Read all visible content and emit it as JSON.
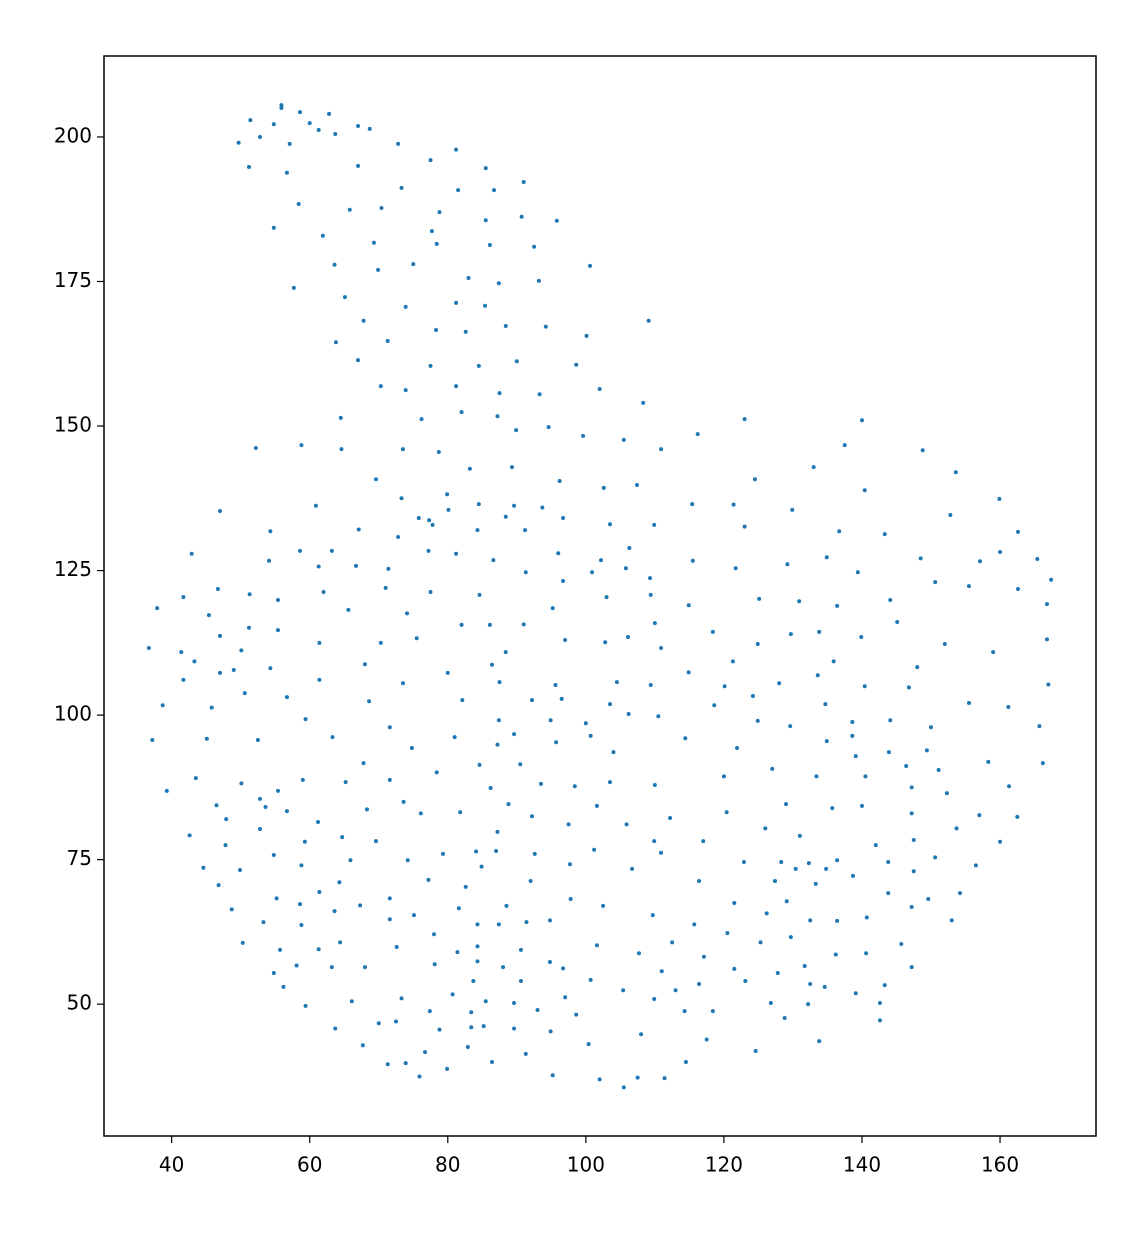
{
  "chart_data": {
    "type": "scatter",
    "color": "#1f77b4",
    "xlim": [
      30.2,
      173.9
    ],
    "ylim": [
      27.2,
      214.0
    ],
    "xticks": [
      40,
      60,
      80,
      100,
      120,
      140,
      160
    ],
    "yticks": [
      50,
      75,
      100,
      125,
      150,
      175,
      200
    ],
    "x": [
      55.9,
      55.9,
      58.6,
      62.8,
      51.4,
      60.0,
      54.8,
      67.0,
      68.7,
      61.3,
      63.7,
      52.8,
      49.7,
      57.1,
      72.8,
      81.2,
      77.5,
      51.2,
      67.0,
      85.5,
      56.7,
      91.0,
      73.3,
      81.5,
      86.7,
      58.4,
      70.4,
      65.8,
      78.8,
      90.7,
      95.8,
      85.5,
      54.8,
      77.7,
      61.9,
      69.3,
      78.4,
      86.1,
      92.5,
      75.0,
      63.6,
      100.6,
      69.9,
      83.0,
      87.4,
      93.2,
      57.7,
      65.1,
      81.2,
      85.4,
      73.9,
      67.8,
      109.1,
      78.3,
      82.6,
      88.4,
      94.2,
      100.1,
      71.3,
      63.8,
      67.0,
      90.0,
      84.5,
      77.5,
      98.6,
      81.2,
      70.3,
      73.9,
      102.0,
      87.5,
      93.3,
      108.3,
      82.0,
      64.5,
      76.2,
      87.2,
      123.0,
      140.0,
      94.6,
      89.9,
      116.2,
      99.6,
      105.5,
      58.8,
      52.2,
      64.6,
      73.5,
      110.9,
      137.5,
      78.7,
      148.8,
      89.3,
      83.2,
      133.0,
      153.6,
      69.6,
      96.2,
      124.5,
      107.4,
      102.6,
      140.4,
      79.9,
      73.3,
      159.9,
      115.4,
      121.4,
      89.6,
      84.5,
      60.9,
      93.7,
      80.1,
      129.9,
      47.0,
      152.8,
      96.7,
      75.8,
      77.3,
      88.4,
      77.8,
      109.9,
      103.5,
      123.0,
      91.2,
      54.3,
      84.3,
      136.7,
      67.1,
      143.3,
      162.6,
      72.8,
      106.3,
      77.2,
      58.6,
      63.2,
      81.2,
      42.9,
      96.0,
      148.5,
      160.0,
      86.6,
      134.9,
      165.4,
      54.1,
      115.5,
      102.2,
      157.1,
      129.2,
      61.3,
      66.7,
      121.7,
      100.9,
      139.4,
      105.8,
      71.4,
      91.3,
      109.3,
      167.4,
      96.7,
      150.6,
      71.0,
      155.5,
      46.7,
      62.0,
      77.5,
      162.6,
      84.6,
      109.4,
      41.7,
      51.3,
      103.0,
      125.1,
      130.9,
      144.1,
      55.4,
      114.9,
      136.4,
      166.8,
      37.9,
      65.6,
      95.2,
      74.1,
      45.4,
      145.1,
      110.0,
      82.0,
      86.1,
      91.0,
      51.2,
      118.4,
      55.4,
      129.7,
      133.8,
      106.1,
      47.0,
      166.8,
      75.5,
      97.0,
      139.9,
      102.8,
      70.3,
      61.4,
      152.0,
      110.9,
      50.1,
      36.7,
      124.9,
      88.4,
      41.4,
      159.0,
      43.3,
      135.9,
      121.3,
      68.0,
      54.3,
      86.4,
      148.0,
      49.0,
      47.0,
      80.0,
      114.9,
      133.6,
      41.7,
      61.4,
      87.5,
      104.5,
      73.5,
      109.4,
      128.0,
      140.4,
      167.0,
      146.8,
      95.6,
      120.1,
      50.6,
      56.7,
      124.2,
      82.1,
      92.2,
      96.5,
      68.6,
      103.5,
      118.6,
      134.7,
      38.7,
      155.5,
      161.2,
      45.8,
      106.2,
      110.5,
      94.9,
      59.4,
      87.4,
      144.1,
      124.9,
      138.6,
      100.0,
      71.6,
      129.6,
      150.0,
      165.7,
      89.6,
      114.4,
      100.7,
      63.3,
      81.0,
      45.1,
      37.2,
      52.5,
      134.9,
      95.7,
      138.6,
      87.2,
      74.8,
      121.9,
      104.0,
      143.9,
      149.4,
      139.1,
      166.2,
      67.8,
      84.6,
      90.5,
      158.3,
      146.4,
      127.0,
      78.4,
      151.1,
      140.5,
      120.0,
      133.4,
      43.5,
      59.0,
      71.6,
      65.2,
      103.5,
      50.1,
      93.5,
      110.0,
      98.4,
      86.2,
      147.2,
      161.3,
      39.3,
      55.4,
      152.3,
      52.8,
      73.6,
      88.8,
      129.0,
      101.6,
      140.0,
      53.6,
      46.5,
      135.7,
      68.3,
      56.7,
      81.8,
      120.4,
      147.2,
      76.1,
      157.0,
      162.5,
      92.2,
      112.2,
      47.9,
      61.2,
      105.9,
      97.5,
      153.7,
      126.0,
      52.8,
      42.6,
      87.2,
      131.0,
      64.7,
      147.5,
      69.6,
      109.9,
      117.0,
      59.3,
      160.0,
      47.8,
      142.0,
      101.2,
      84.1,
      87.0,
      110.9,
      92.6,
      79.3,
      54.8,
      150.6,
      74.2,
      65.9,
      136.4,
      122.9,
      128.3,
      132.3,
      143.8,
      97.7,
      156.5,
      84.9,
      58.8,
      44.6,
      106.7,
      49.9,
      130.4,
      134.8,
      147.5,
      138.7,
      64.3,
      92.0,
      116.4,
      77.2,
      127.4,
      46.8,
      133.3,
      82.6,
      61.4,
      143.8,
      154.2,
      97.8,
      55.2,
      71.6,
      149.6,
      129.1,
      102.5,
      88.5,
      121.5,
      58.6,
      67.3,
      147.2,
      81.6,
      48.7,
      63.6,
      126.2,
      75.1,
      109.7,
      71.6,
      94.8,
      140.7,
      153.0,
      132.5,
      136.4,
      84.3,
      87.4,
      91.4,
      53.3,
      58.8,
      115.7,
      120.5,
      78.0,
      129.7,
      125.3,
      112.5,
      50.3,
      64.4,
      101.6,
      145.7,
      84.3,
      72.6,
      55.7,
      61.3,
      90.6,
      81.4,
      107.7,
      140.6,
      117.1,
      136.2,
      84.3,
      94.8,
      78.1,
      58.1,
      68.0,
      131.7,
      147.2,
      121.5,
      63.2,
      88.0,
      96.7,
      111.0,
      127.8,
      54.8,
      123.1,
      100.7,
      83.7,
      90.6,
      132.5,
      116.4,
      143.3,
      56.2,
      134.6,
      105.4,
      113.0,
      80.7,
      139.1,
      73.3,
      97.0,
      109.9,
      85.5,
      126.8,
      66.1,
      89.6,
      142.6,
      59.4,
      132.2,
      93.0,
      77.4,
      83.4,
      118.4,
      114.3,
      98.6,
      128.8,
      142.6,
      70.0,
      72.5,
      63.7,
      83.4,
      85.2,
      89.6,
      78.8,
      94.9,
      108.0,
      117.5,
      133.8,
      67.7,
      100.4,
      82.9,
      124.6,
      76.7,
      91.3,
      86.4,
      114.5,
      71.3,
      73.9,
      79.9,
      75.9,
      95.2,
      107.5,
      111.4,
      102.0,
      105.5
    ],
    "values": [
      205.5,
      205.0,
      204.3,
      204.0,
      202.9,
      202.4,
      202.2,
      201.9,
      201.4,
      201.2,
      200.5,
      200.0,
      199.0,
      198.8,
      198.8,
      197.8,
      196.0,
      194.8,
      195.0,
      194.6,
      193.8,
      192.2,
      191.2,
      190.8,
      190.8,
      188.4,
      187.7,
      187.4,
      187.0,
      186.2,
      185.5,
      185.6,
      184.3,
      183.7,
      182.9,
      181.7,
      181.5,
      181.3,
      181.0,
      178.0,
      177.9,
      177.7,
      177.0,
      175.6,
      174.7,
      175.1,
      173.9,
      172.3,
      171.3,
      170.8,
      170.6,
      168.2,
      168.2,
      166.6,
      166.3,
      167.3,
      167.2,
      165.6,
      164.7,
      164.5,
      161.4,
      161.2,
      160.4,
      160.4,
      160.6,
      156.9,
      156.9,
      156.2,
      156.4,
      155.7,
      155.5,
      154.0,
      152.4,
      151.4,
      151.2,
      151.7,
      151.2,
      151.0,
      149.8,
      149.3,
      148.6,
      148.3,
      147.6,
      146.7,
      146.2,
      146.0,
      146.0,
      146.0,
      146.7,
      145.5,
      145.8,
      142.9,
      142.6,
      142.9,
      142.0,
      140.8,
      140.5,
      140.8,
      139.8,
      139.3,
      138.9,
      138.2,
      137.5,
      137.4,
      136.5,
      136.4,
      136.2,
      136.5,
      136.2,
      135.9,
      135.5,
      135.5,
      135.3,
      134.6,
      134.1,
      134.1,
      133.7,
      134.3,
      132.9,
      132.9,
      133.0,
      132.6,
      132.0,
      131.8,
      132.0,
      131.8,
      132.1,
      131.3,
      131.7,
      130.8,
      128.9,
      128.4,
      128.4,
      128.4,
      127.9,
      127.9,
      128.0,
      127.1,
      128.2,
      126.8,
      127.3,
      127.0,
      126.7,
      126.7,
      126.8,
      126.6,
      126.1,
      125.7,
      125.8,
      125.4,
      124.7,
      124.7,
      125.4,
      125.3,
      124.7,
      123.7,
      123.4,
      123.2,
      123.0,
      122.0,
      122.3,
      121.8,
      121.3,
      121.3,
      121.8,
      120.8,
      120.8,
      120.4,
      120.9,
      120.4,
      120.1,
      119.7,
      119.9,
      119.9,
      119.0,
      118.9,
      119.2,
      118.5,
      118.2,
      118.5,
      117.6,
      117.3,
      116.1,
      115.9,
      115.6,
      115.6,
      115.7,
      115.1,
      114.4,
      114.7,
      114.0,
      114.4,
      113.5,
      113.7,
      113.1,
      113.3,
      113.0,
      113.5,
      112.6,
      112.5,
      112.5,
      112.3,
      111.6,
      111.2,
      111.6,
      112.3,
      110.9,
      110.9,
      110.9,
      109.3,
      109.3,
      109.3,
      108.8,
      108.1,
      108.7,
      108.3,
      107.8,
      107.3,
      107.3,
      107.4,
      106.9,
      106.1,
      106.1,
      105.7,
      105.7,
      105.5,
      105.2,
      105.5,
      105.0,
      105.3,
      104.8,
      105.2,
      105.0,
      103.8,
      103.1,
      103.3,
      102.6,
      102.6,
      102.8,
      102.4,
      101.9,
      101.7,
      101.9,
      101.7,
      102.1,
      101.4,
      101.3,
      100.2,
      99.8,
      99.1,
      99.3,
      99.1,
      99.1,
      99.0,
      98.8,
      98.6,
      97.9,
      98.1,
      97.9,
      98.1,
      96.7,
      96.0,
      96.4,
      96.2,
      96.2,
      95.9,
      95.7,
      95.7,
      95.5,
      95.3,
      96.4,
      94.9,
      94.3,
      94.3,
      93.6,
      93.6,
      93.9,
      92.9,
      91.7,
      91.7,
      91.4,
      91.5,
      91.9,
      91.2,
      90.7,
      90.1,
      90.5,
      89.4,
      89.4,
      89.4,
      89.1,
      88.8,
      88.8,
      88.4,
      88.4,
      88.2,
      88.1,
      87.9,
      87.7,
      87.4,
      87.5,
      87.7,
      86.9,
      86.9,
      86.5,
      85.5,
      85.0,
      84.6,
      84.6,
      84.3,
      84.3,
      84.1,
      84.4,
      83.9,
      83.7,
      83.4,
      83.2,
      83.2,
      83.0,
      83.0,
      82.7,
      82.4,
      82.5,
      82.2,
      82.0,
      81.5,
      81.1,
      81.1,
      80.4,
      80.4,
      80.3,
      79.2,
      79.8,
      79.1,
      78.9,
      78.4,
      78.2,
      78.2,
      78.2,
      78.1,
      78.1,
      77.5,
      77.5,
      76.7,
      76.4,
      76.5,
      76.2,
      76.0,
      76.0,
      75.8,
      75.4,
      74.9,
      74.9,
      74.9,
      74.6,
      74.6,
      74.4,
      74.6,
      74.2,
      74.0,
      73.8,
      74.0,
      73.6,
      73.4,
      73.2,
      73.4,
      73.4,
      73.0,
      72.2,
      71.1,
      71.3,
      71.3,
      71.5,
      71.3,
      70.6,
      70.8,
      70.3,
      69.4,
      69.2,
      69.2,
      68.2,
      68.3,
      68.3,
      68.2,
      67.8,
      67.0,
      67.0,
      67.5,
      67.3,
      67.1,
      66.8,
      66.6,
      66.4,
      66.1,
      65.7,
      65.4,
      65.4,
      64.7,
      64.5,
      65.0,
      64.5,
      64.5,
      64.4,
      63.8,
      63.8,
      64.2,
      64.2,
      63.7,
      63.8,
      62.3,
      62.1,
      61.6,
      60.7,
      60.7,
      60.6,
      60.7,
      60.2,
      60.4,
      60.0,
      59.9,
      59.4,
      59.5,
      59.4,
      59.0,
      58.8,
      58.8,
      58.2,
      58.6,
      57.4,
      57.3,
      56.9,
      56.7,
      56.4,
      56.6,
      56.4,
      56.1,
      56.4,
      56.4,
      56.2,
      55.7,
      55.4,
      55.4,
      54.0,
      54.2,
      54.0,
      54.0,
      53.5,
      53.5,
      53.3,
      53.0,
      53.0,
      52.4,
      52.4,
      51.7,
      51.9,
      51.0,
      51.2,
      50.9,
      50.5,
      50.2,
      50.5,
      50.2,
      50.2,
      49.7,
      50.0,
      49.0,
      48.8,
      48.6,
      48.8,
      48.8,
      48.2,
      47.6,
      47.2,
      46.7,
      47.0,
      45.8,
      46.0,
      46.2,
      45.8,
      45.6,
      45.3,
      44.8,
      43.9,
      43.6,
      42.9,
      43.1,
      42.6,
      41.9,
      41.7,
      41.4,
      40.0,
      40.0,
      39.6,
      39.8,
      38.8,
      37.5,
      37.7,
      37.3,
      37.2,
      37.0,
      35.6
    ]
  }
}
